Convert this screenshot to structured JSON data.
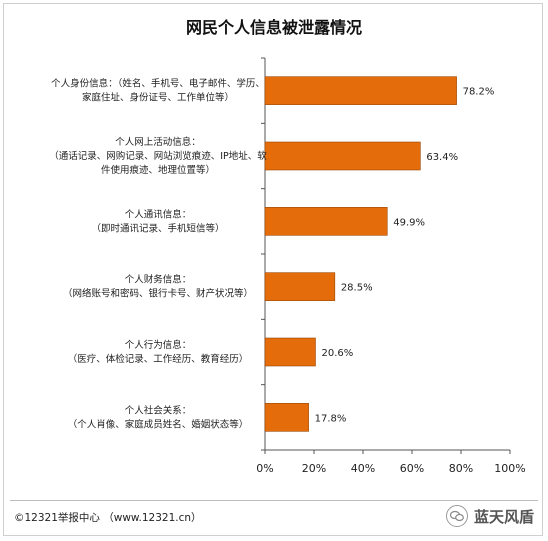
{
  "chart_data": {
    "type": "bar",
    "orientation": "horizontal",
    "title": "网民个人信息被泄露情况",
    "categories": [
      [
        "个人身份信息：（姓名、手机号、电子邮件、学历、",
        "家庭住址、身份证号、工作单位等）"
      ],
      [
        "个人网上活动信息：",
        "（通话记录、网购记录、网站浏览痕迹、IP地址、软",
        "件使用痕迹、地理位置等）"
      ],
      [
        "个人通讯信息：",
        "（即时通讯记录、手机短信等）"
      ],
      [
        "个人财务信息：",
        "（网络账号和密码、银行卡号、财产状况等）"
      ],
      [
        "个人行为信息：",
        "（医疗、体检记录、工作经历、教育经历）"
      ],
      [
        "个人社会关系：",
        "（个人肖像、家庭成员姓名、婚姻状态等）"
      ]
    ],
    "values": [
      78.2,
      63.4,
      49.9,
      28.5,
      20.6,
      17.8
    ],
    "value_labels": [
      "78.2%",
      "63.4%",
      "49.9%",
      "28.5%",
      "20.6%",
      "17.8%"
    ],
    "xlim": [
      0,
      100
    ],
    "xticks": [
      "0%",
      "20%",
      "40%",
      "60%",
      "80%",
      "100%"
    ],
    "bar_color": "#e46c0a",
    "grid": false
  },
  "footer": {
    "source": "©12321举报中心  （www.12321.cn）",
    "watermark_text": "蓝天风盾",
    "watermark_icon": "chat-bubbles-icon"
  }
}
